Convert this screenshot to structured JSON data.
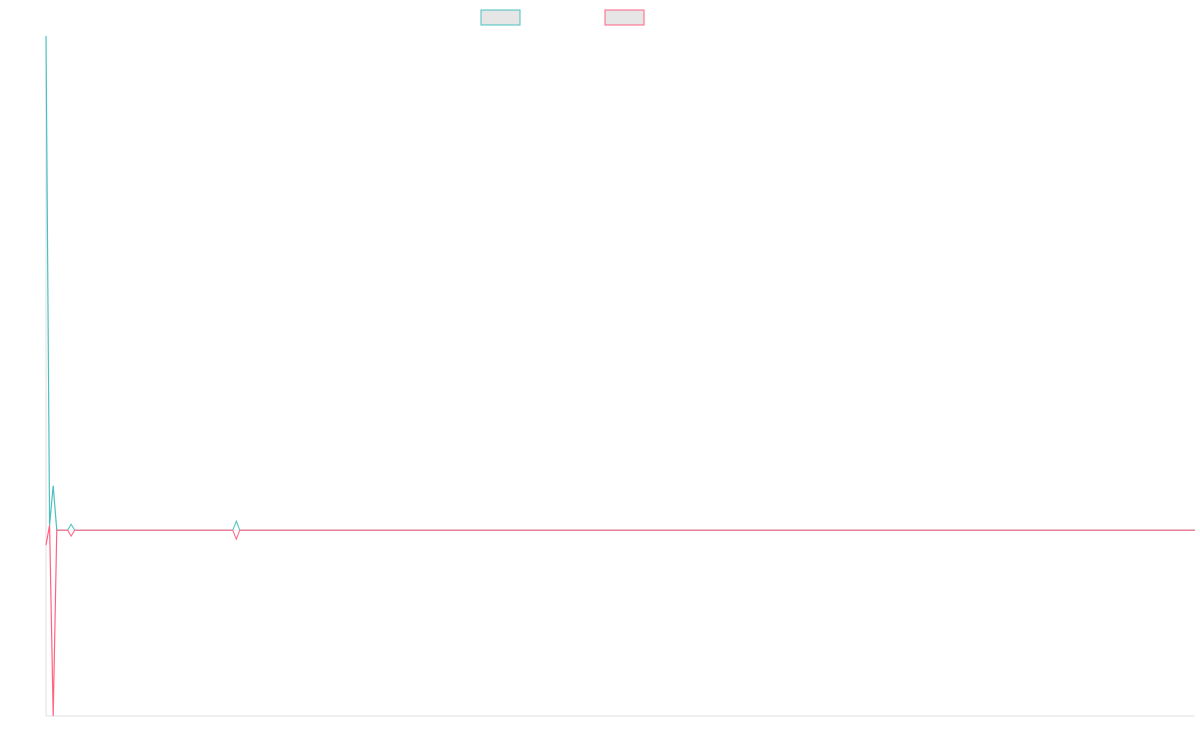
{
  "chart_data": {
    "type": "line",
    "title": "",
    "xlabel": "",
    "ylabel": "",
    "x": [
      0,
      1,
      2,
      3,
      7,
      53,
      320
    ],
    "xlim": [
      0,
      320
    ],
    "ylim": [
      -37.6,
      100
    ],
    "grid": false,
    "legend": "top-center",
    "series": [
      {
        "color": "#4bc0c0",
        "values": [
          100,
          1,
          9,
          0,
          0,
          0,
          0
        ],
        "markers_at": [
          7,
          53
        ]
      },
      {
        "color": "#ff6384",
        "values": [
          -3,
          1,
          -37.6,
          0,
          0,
          0,
          0
        ],
        "markers_at": [
          7,
          53
        ]
      }
    ],
    "axis_color": "#e0e0e0",
    "legend_fill": "#e6e6e6"
  }
}
